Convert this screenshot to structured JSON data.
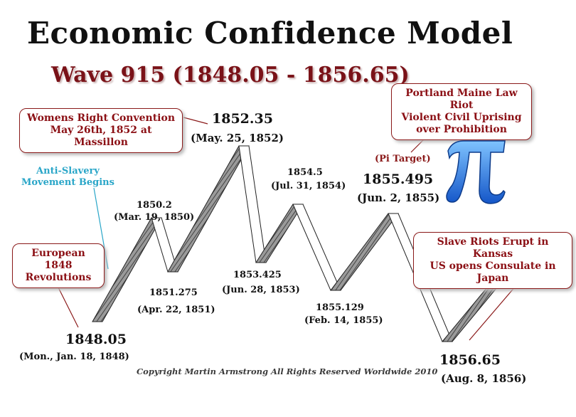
{
  "header": {
    "title": "Economic Confidence Model",
    "subtitle": "Wave 915 (1848.05 - 1856.65)"
  },
  "callouts": {
    "womens": "Womens Right Convention\nMay 26th, 1852 at Massillon",
    "european": "European 1848\nRevolutions",
    "portland": "Portland Maine Law Riot\nViolent Civil Uprising\nover Prohibition",
    "slave": "Slave Riots Erupt in Kansas\nUS opens Consulate in Japan"
  },
  "annotations": {
    "anti_slavery": "Anti-Slavery\nMovement Begins",
    "pi_target": "(Pi Target)",
    "copyright": "Copyright Martin Armstrong All Rights Reserved Worldwide 2010"
  },
  "points": [
    {
      "value": "1848.05",
      "date": "(Mon., Jan. 18, 1848)"
    },
    {
      "value": "1850.2",
      "date": "(Mar. 19, 1850)"
    },
    {
      "value": "1851.275",
      "date": "(Apr. 22, 1851)"
    },
    {
      "value": "1852.35",
      "date": "(May. 25, 1852)"
    },
    {
      "value": "1853.425",
      "date": "(Jun. 28, 1853)"
    },
    {
      "value": "1854.5",
      "date": "(Jul. 31, 1854)"
    },
    {
      "value": "1855.129",
      "date": "(Feb. 14, 1855)"
    },
    {
      "value": "1855.495",
      "date": "(Jun. 2, 1855)"
    },
    {
      "value": "1856.65",
      "date": "(Aug. 8, 1856)"
    }
  ],
  "colors": {
    "accent_red": "#8b0f14",
    "anti_slavery_blue": "#2aa6c8",
    "pi_blue": "#1e6fd9"
  },
  "icons": {
    "pi": "pi-symbol-icon"
  }
}
